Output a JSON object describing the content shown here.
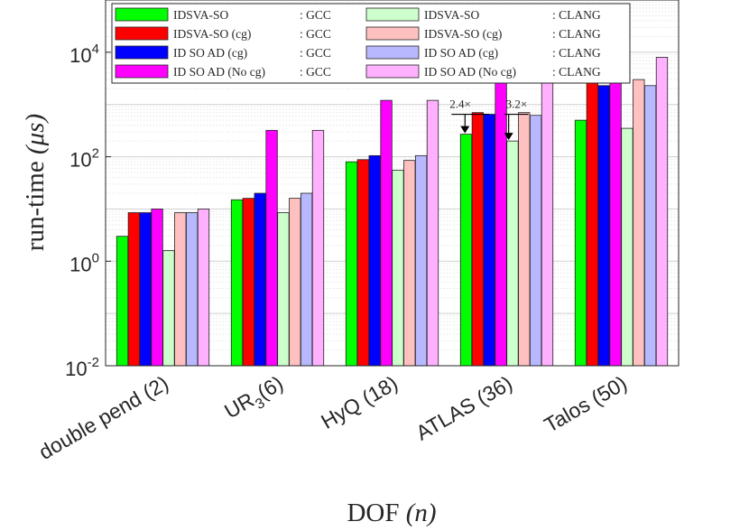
{
  "chart_data": {
    "type": "bar",
    "scale": "log",
    "title": "",
    "xlabel_main": "DOF",
    "xlabel_var": "(n)",
    "ylabel_main": "run-time",
    "ylabel_var": "(μs)",
    "ylim": [
      0.01,
      100000
    ],
    "yticks": [
      {
        "base": "10",
        "exp": "-2",
        "value": 0.01
      },
      {
        "base": "10",
        "exp": "0",
        "value": 1
      },
      {
        "base": "10",
        "exp": "2",
        "value": 100
      },
      {
        "base": "10",
        "exp": "4",
        "value": 10000
      }
    ],
    "categories": [
      {
        "label": "double pend (2)"
      },
      {
        "label": "UR",
        "sub": "3",
        "rest": "(6)"
      },
      {
        "label": "HyQ (18)"
      },
      {
        "label": "ATLAS (36)"
      },
      {
        "label": "Talos (50)"
      }
    ],
    "series": [
      {
        "name": "IDSVA-SO",
        "compiler": "GCC",
        "color": "#00ff00",
        "values": [
          3.0,
          15,
          80,
          270,
          500
        ]
      },
      {
        "name": "IDSVA-SO (cg)",
        "compiler": "GCC",
        "color": "#ff0000",
        "values": [
          8.5,
          16,
          88,
          700,
          3000
        ]
      },
      {
        "name": "ID SO AD (cg)",
        "compiler": "GCC",
        "color": "#0000ff",
        "values": [
          8.5,
          20,
          105,
          650,
          2300
        ]
      },
      {
        "name": "ID SO AD (No cg)",
        "compiler": "GCC",
        "color": "#ff00ff",
        "values": [
          10,
          320,
          1200,
          4800,
          8000
        ]
      },
      {
        "name": "IDSVA-SO",
        "compiler": "CLANG",
        "color": "#ccffcc",
        "values": [
          1.6,
          8.5,
          55,
          200,
          350
        ]
      },
      {
        "name": "IDSVA-SO (cg)",
        "compiler": "CLANG",
        "color": "#ffc0c0",
        "values": [
          8.5,
          16,
          85,
          700,
          3000
        ]
      },
      {
        "name": "ID SO AD (cg)",
        "compiler": "CLANG",
        "color": "#b8b8ff",
        "values": [
          8.5,
          20,
          105,
          620,
          2300
        ]
      },
      {
        "name": "ID SO AD (No cg)",
        "compiler": "CLANG",
        "color": "#ffb0ff",
        "values": [
          10,
          320,
          1200,
          4800,
          8000
        ]
      }
    ],
    "annotations": [
      {
        "text": "2.4×",
        "category": "ATLAS (36)",
        "from": 650,
        "to": 270
      },
      {
        "text": "3.2×",
        "category": "ATLAS (36)",
        "from": 650,
        "to": 200
      }
    ],
    "legend_position": "top, two columns",
    "grid": true
  }
}
